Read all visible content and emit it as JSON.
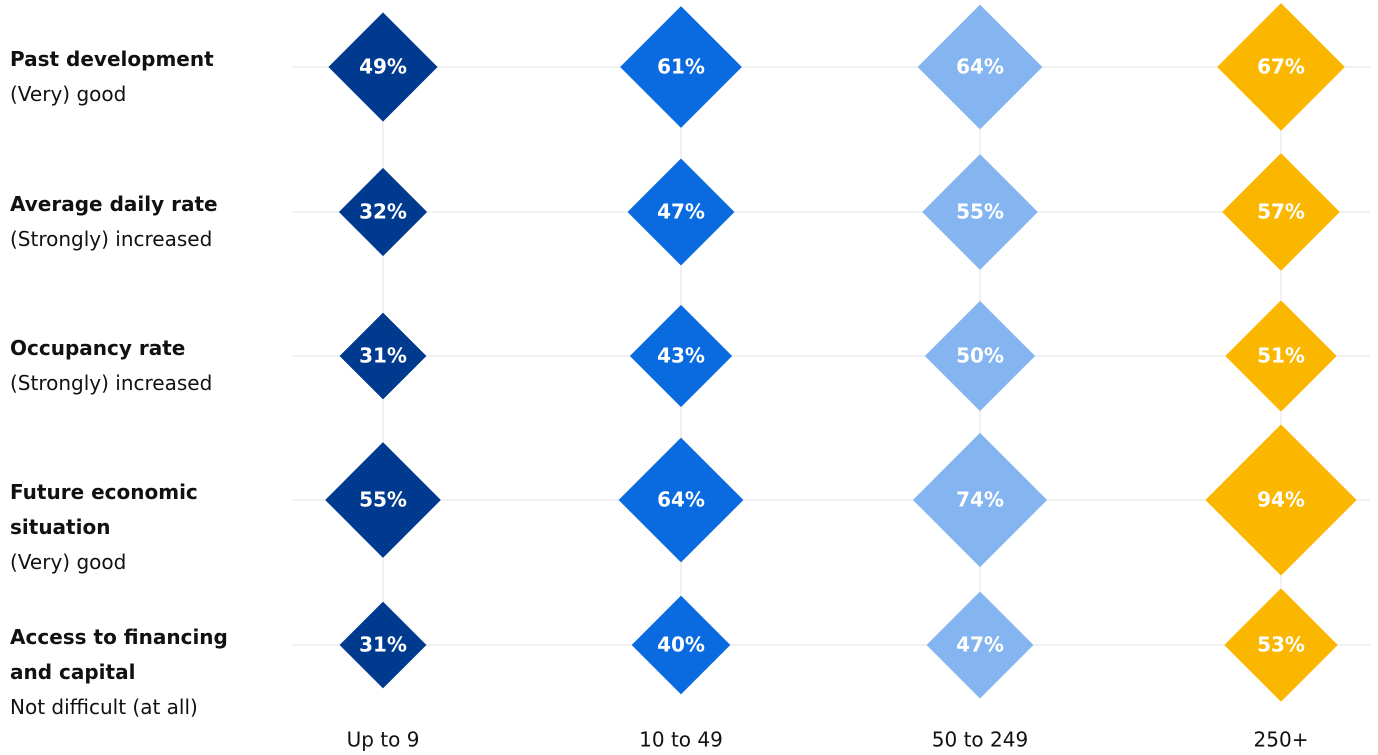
{
  "chart_data": {
    "type": "diamond",
    "categories": [
      "Up to 9",
      "10 to 49",
      "50 to 249",
      "250+"
    ],
    "colors": [
      "#003a8f",
      "#0a6be0",
      "#84b5f0",
      "#fbb700"
    ],
    "series": [
      {
        "name": "Past development",
        "subtitle": "(Very) good",
        "values": [
          49,
          61,
          64,
          67
        ],
        "value_labels": [
          "49%",
          "61%",
          "64%",
          "67%"
        ]
      },
      {
        "name": "Average daily rate",
        "subtitle": "(Strongly) increased",
        "values": [
          32,
          47,
          55,
          57
        ],
        "value_labels": [
          "32%",
          "47%",
          "55%",
          "57%"
        ]
      },
      {
        "name": "Occupancy rate",
        "subtitle": "(Strongly) increased",
        "values": [
          31,
          43,
          50,
          51
        ],
        "value_labels": [
          "31%",
          "43%",
          "50%",
          "51%"
        ]
      },
      {
        "name": "Future economic situation",
        "subtitle": "(Very) good",
        "values": [
          55,
          64,
          74,
          94
        ],
        "value_labels": [
          "55%",
          "64%",
          "74%",
          "94%"
        ]
      },
      {
        "name": "Access to financing and capital",
        "subtitle": "Not difficult (at all)",
        "values": [
          31,
          40,
          47,
          53
        ],
        "value_labels": [
          "31%",
          "40%",
          "47%",
          "53%"
        ]
      }
    ]
  }
}
